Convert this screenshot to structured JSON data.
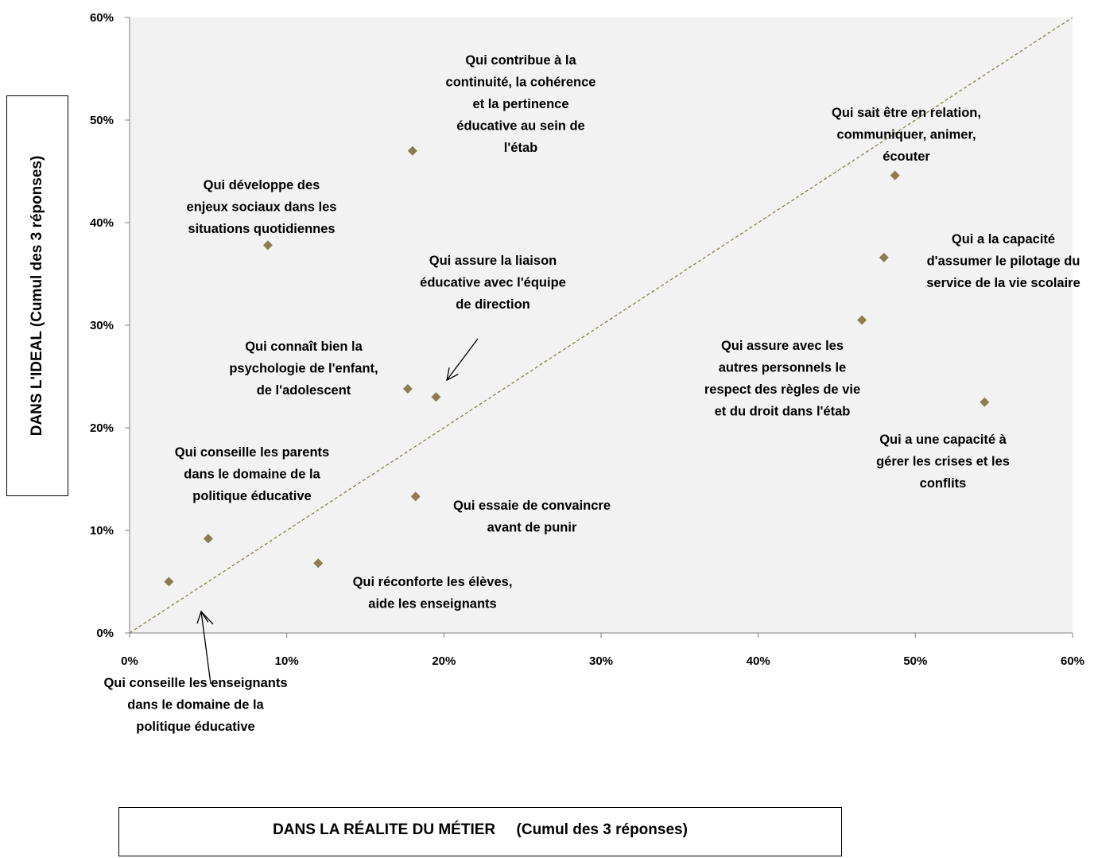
{
  "chart_data": {
    "type": "scatter",
    "xlabel": "DANS LA RÉALITE DU MÉTIER     (Cumul des 3 réponses)",
    "ylabel": "DANS L'IDEAL (Cumul des 3 réponses)",
    "xlim": [
      0,
      0.6
    ],
    "ylim": [
      0,
      0.6
    ],
    "x_ticks": [
      "0%",
      "10%",
      "20%",
      "30%",
      "40%",
      "50%",
      "60%"
    ],
    "y_ticks": [
      "0%",
      "10%",
      "20%",
      "30%",
      "40%",
      "50%",
      "60%"
    ],
    "grid": false,
    "reference_line": "y = x (dashed diagonal)",
    "marker": "diamond",
    "marker_color": "#8b7d4f",
    "plot_background": "#f2f2f2",
    "points": [
      {
        "x": 0.18,
        "y": 0.47,
        "label": [
          "Qui contribue à la",
          "continuité, la cohérence",
          "et la pertinence",
          "éducative au sein de",
          "l'étab"
        ]
      },
      {
        "x": 0.487,
        "y": 0.446,
        "label": [
          "Qui sait être en relation,",
          "communiquer, animer,",
          "écouter"
        ]
      },
      {
        "x": 0.088,
        "y": 0.378,
        "label": [
          "Qui développe des",
          "enjeux sociaux dans les",
          "situations quotidiennes"
        ]
      },
      {
        "x": 0.48,
        "y": 0.366,
        "label": [
          "Qui a la capacité",
          "d'assumer le pilotage du",
          "service de la vie scolaire"
        ]
      },
      {
        "x": 0.466,
        "y": 0.305,
        "label": [
          "Qui assure avec les",
          "autres personnels le",
          "respect des règles de vie",
          "et du droit dans l'étab"
        ]
      },
      {
        "x": 0.177,
        "y": 0.238,
        "label": [
          "Qui connaît bien la",
          "psychologie de l'enfant,",
          "de l'adolescent"
        ]
      },
      {
        "x": 0.195,
        "y": 0.23,
        "label": [
          "Qui assure la liaison",
          "éducative avec l'équipe",
          "de direction"
        ]
      },
      {
        "x": 0.544,
        "y": 0.225,
        "label": [
          "Qui a une capacité à",
          "gérer les crises et les",
          "conflits"
        ]
      },
      {
        "x": 0.182,
        "y": 0.133,
        "label": [
          "Qui essaie de convaincre",
          "avant de punir"
        ]
      },
      {
        "x": 0.05,
        "y": 0.092,
        "label": [
          "Qui conseille les parents",
          "dans le domaine de la",
          "politique éducative"
        ]
      },
      {
        "x": 0.12,
        "y": 0.068,
        "label": [
          "Qui réconforte les élèves,",
          "aide les enseignants"
        ]
      },
      {
        "x": 0.025,
        "y": 0.05,
        "label": [
          "Qui conseille les enseignants",
          "dans le domaine de la",
          "politique éducative"
        ]
      }
    ]
  }
}
